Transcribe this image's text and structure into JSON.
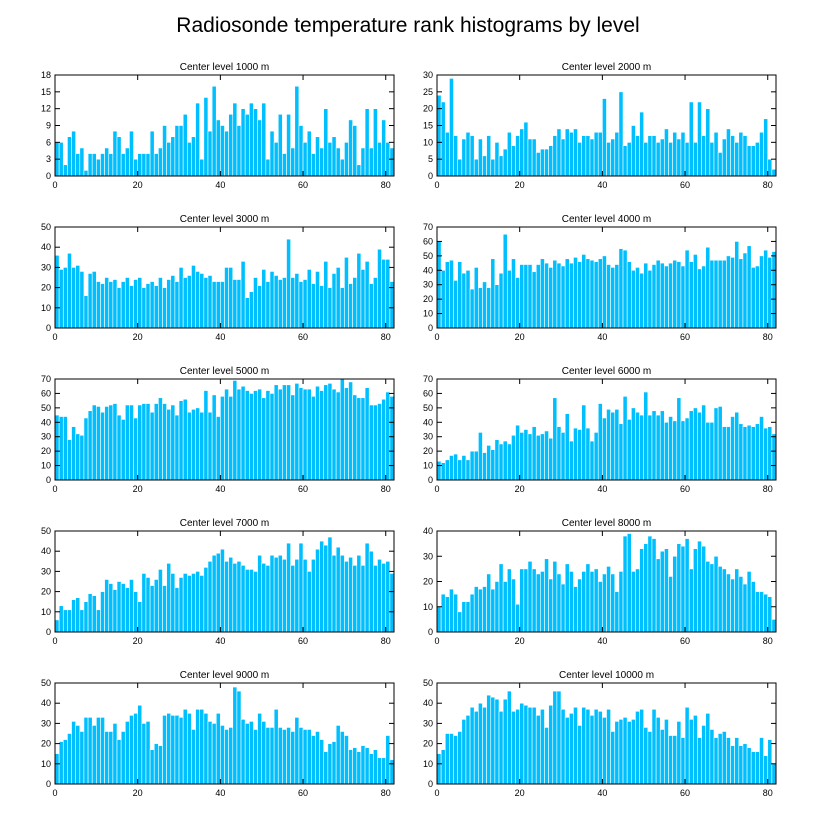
{
  "figure_title": "Radiosonde temperature rank histograms by level",
  "colors": {
    "bar": "#00bfff",
    "bar_edge": "#ffffff",
    "axis": "#000000"
  },
  "chart_data": [
    {
      "type": "bar",
      "title": "Center level 1000 m",
      "x_start": 0,
      "xlim": [
        0,
        82
      ],
      "xticks": [
        0,
        20,
        40,
        60,
        80
      ],
      "ylim": [
        0,
        18
      ],
      "yticks": [
        0,
        3,
        6,
        9,
        12,
        15,
        18
      ],
      "values": [
        6,
        6,
        2,
        7,
        8,
        4,
        5,
        1,
        4,
        4,
        3,
        4,
        5,
        4,
        8,
        7,
        4,
        5,
        8,
        3,
        4,
        4,
        4,
        8,
        4,
        5,
        9,
        6,
        7,
        9,
        9,
        11,
        6,
        7,
        13,
        3,
        14,
        8,
        16,
        10,
        9,
        8,
        11,
        13,
        9,
        12,
        11,
        13,
        12,
        10,
        13,
        3,
        8,
        6,
        11,
        4,
        11,
        5,
        16,
        9,
        6,
        8,
        4,
        7,
        5,
        12,
        6,
        7,
        5,
        3,
        6,
        10,
        9,
        2,
        5,
        12,
        5,
        12,
        6,
        10,
        6,
        5
      ]
    },
    {
      "type": "bar",
      "title": "Center level 2000 m",
      "x_start": 0,
      "xlim": [
        0,
        82
      ],
      "xticks": [
        0,
        20,
        40,
        60,
        80
      ],
      "ylim": [
        0,
        30
      ],
      "yticks": [
        0,
        5,
        10,
        15,
        20,
        25,
        30
      ],
      "values": [
        24,
        22,
        13,
        29,
        12,
        5,
        11,
        13,
        12,
        5,
        11,
        6,
        12,
        5,
        10,
        6,
        8,
        13,
        9,
        12,
        14,
        16,
        11,
        11,
        7,
        8,
        8,
        9,
        12,
        14,
        11,
        14,
        13,
        14,
        10,
        12,
        12,
        11,
        13,
        13,
        23,
        10,
        11,
        13,
        25,
        9,
        10,
        15,
        12,
        19,
        10,
        12,
        12,
        10,
        11,
        14,
        10,
        13,
        11,
        13,
        10,
        22,
        10,
        22,
        12,
        20,
        10,
        13,
        7,
        11,
        14,
        12,
        10,
        13,
        12,
        9,
        9,
        10,
        13,
        17,
        5,
        2
      ]
    },
    {
      "type": "bar",
      "title": "Center level 3000 m",
      "x_start": 0,
      "xlim": [
        0,
        82
      ],
      "xticks": [
        0,
        20,
        40,
        60,
        80
      ],
      "ylim": [
        0,
        50
      ],
      "yticks": [
        0,
        10,
        20,
        30,
        40,
        50
      ],
      "values": [
        36,
        29,
        30,
        37,
        30,
        31,
        28,
        16,
        27,
        28,
        23,
        22,
        25,
        23,
        24,
        20,
        23,
        25,
        21,
        24,
        25,
        20,
        22,
        23,
        21,
        25,
        20,
        24,
        26,
        23,
        30,
        25,
        26,
        31,
        28,
        27,
        25,
        26,
        23,
        23,
        23,
        30,
        30,
        24,
        24,
        33,
        15,
        18,
        25,
        21,
        29,
        23,
        28,
        26,
        24,
        25,
        44,
        25,
        27,
        23,
        24,
        29,
        22,
        28,
        21,
        33,
        20,
        27,
        30,
        20,
        35,
        22,
        25,
        37,
        29,
        33,
        22,
        25,
        39,
        34,
        34,
        23
      ]
    },
    {
      "type": "bar",
      "title": "Center level 4000 m",
      "x_start": 0,
      "xlim": [
        0,
        82
      ],
      "xticks": [
        0,
        20,
        40,
        60,
        80
      ],
      "ylim": [
        0,
        70
      ],
      "yticks": [
        0,
        10,
        20,
        30,
        40,
        50,
        60,
        70
      ],
      "values": [
        60,
        40,
        46,
        47,
        33,
        46,
        38,
        40,
        27,
        42,
        28,
        32,
        28,
        48,
        30,
        38,
        65,
        40,
        48,
        35,
        44,
        44,
        44,
        39,
        44,
        48,
        45,
        42,
        47,
        45,
        43,
        48,
        45,
        49,
        46,
        51,
        48,
        47,
        46,
        48,
        50,
        44,
        42,
        44,
        55,
        54,
        46,
        40,
        42,
        38,
        45,
        40,
        44,
        47,
        45,
        43,
        45,
        47,
        46,
        43,
        54,
        46,
        51,
        41,
        43,
        56,
        47,
        47,
        47,
        47,
        50,
        49,
        60,
        48,
        52,
        57,
        42,
        43,
        50,
        54,
        49,
        53
      ]
    },
    {
      "type": "bar",
      "title": "Center level 5000 m",
      "x_start": 0,
      "xlim": [
        0,
        82
      ],
      "xticks": [
        0,
        20,
        40,
        60,
        80
      ],
      "ylim": [
        0,
        70
      ],
      "yticks": [
        0,
        10,
        20,
        30,
        40,
        50,
        60,
        70
      ],
      "values": [
        45,
        44,
        44,
        28,
        37,
        32,
        31,
        43,
        48,
        52,
        51,
        47,
        51,
        52,
        53,
        45,
        42,
        52,
        52,
        43,
        52,
        53,
        53,
        47,
        53,
        57,
        53,
        49,
        52,
        45,
        55,
        56,
        47,
        49,
        50,
        47,
        62,
        47,
        59,
        44,
        58,
        63,
        58,
        69,
        63,
        65,
        62,
        60,
        62,
        63,
        57,
        62,
        60,
        66,
        63,
        66,
        66,
        59,
        67,
        64,
        63,
        63,
        58,
        65,
        62,
        66,
        67,
        63,
        61,
        70,
        64,
        68,
        59,
        57,
        57,
        64,
        52,
        52,
        53,
        56,
        61,
        58
      ]
    },
    {
      "type": "bar",
      "title": "Center level 6000 m",
      "x_start": 0,
      "xlim": [
        0,
        82
      ],
      "xticks": [
        0,
        20,
        40,
        60,
        80
      ],
      "ylim": [
        0,
        70
      ],
      "yticks": [
        0,
        10,
        20,
        30,
        40,
        50,
        60,
        70
      ],
      "values": [
        13,
        12,
        14,
        17,
        18,
        14,
        17,
        14,
        20,
        20,
        33,
        19,
        24,
        21,
        28,
        25,
        27,
        25,
        31,
        38,
        33,
        35,
        32,
        37,
        31,
        32,
        34,
        29,
        57,
        37,
        33,
        46,
        27,
        36,
        35,
        52,
        36,
        27,
        33,
        53,
        43,
        49,
        47,
        49,
        39,
        58,
        42,
        50,
        47,
        45,
        61,
        45,
        48,
        45,
        48,
        40,
        44,
        41,
        57,
        41,
        43,
        48,
        50,
        47,
        52,
        40,
        40,
        50,
        51,
        37,
        37,
        44,
        47,
        39,
        37,
        38,
        37,
        39,
        44,
        36,
        37,
        32
      ]
    },
    {
      "type": "bar",
      "title": "Center level 7000 m",
      "x_start": 0,
      "xlim": [
        0,
        82
      ],
      "xticks": [
        0,
        20,
        40,
        60,
        80
      ],
      "ylim": [
        0,
        50
      ],
      "yticks": [
        0,
        10,
        20,
        30,
        40,
        50
      ],
      "values": [
        6,
        13,
        11,
        11,
        16,
        17,
        11,
        15,
        19,
        18,
        11,
        20,
        26,
        24,
        21,
        25,
        24,
        22,
        26,
        20,
        15,
        29,
        27,
        23,
        26,
        31,
        23,
        34,
        29,
        22,
        27,
        29,
        28,
        29,
        30,
        28,
        32,
        35,
        38,
        39,
        41,
        35,
        37,
        34,
        35,
        33,
        31,
        31,
        30,
        38,
        34,
        33,
        38,
        37,
        38,
        36,
        44,
        33,
        36,
        44,
        36,
        30,
        36,
        41,
        45,
        43,
        47,
        38,
        42,
        38,
        35,
        37,
        33,
        38,
        33,
        44,
        40,
        33,
        36,
        34,
        35,
        29
      ]
    },
    {
      "type": "bar",
      "title": "Center level 8000 m",
      "x_start": 0,
      "xlim": [
        0,
        82
      ],
      "xticks": [
        0,
        20,
        40,
        60,
        80
      ],
      "ylim": [
        0,
        40
      ],
      "yticks": [
        0,
        10,
        20,
        30,
        40
      ],
      "values": [
        10,
        15,
        14,
        17,
        15,
        8,
        12,
        12,
        15,
        18,
        17,
        18,
        23,
        17,
        20,
        27,
        20,
        25,
        21,
        11,
        25,
        25,
        28,
        25,
        23,
        24,
        29,
        21,
        28,
        23,
        19,
        27,
        24,
        18,
        21,
        24,
        27,
        24,
        25,
        20,
        23,
        26,
        23,
        16,
        24,
        38,
        39,
        24,
        25,
        33,
        35,
        38,
        37,
        29,
        32,
        33,
        22,
        30,
        35,
        34,
        37,
        25,
        33,
        36,
        34,
        28,
        27,
        30,
        26,
        25,
        23,
        21,
        25,
        22,
        19,
        24,
        20,
        16,
        16,
        15,
        14,
        5
      ]
    },
    {
      "type": "bar",
      "title": "Center level 9000 m",
      "x_start": 0,
      "xlim": [
        0,
        82
      ],
      "xticks": [
        0,
        20,
        40,
        60,
        80
      ],
      "ylim": [
        0,
        50
      ],
      "yticks": [
        0,
        10,
        20,
        30,
        40,
        50
      ],
      "values": [
        15,
        21,
        22,
        25,
        31,
        29,
        26,
        33,
        33,
        29,
        33,
        33,
        26,
        26,
        30,
        22,
        26,
        31,
        34,
        35,
        39,
        30,
        31,
        17,
        20,
        19,
        34,
        35,
        34,
        34,
        33,
        37,
        35,
        27,
        37,
        37,
        35,
        31,
        30,
        35,
        29,
        27,
        28,
        48,
        46,
        32,
        30,
        31,
        27,
        35,
        31,
        28,
        28,
        37,
        28,
        27,
        28,
        26,
        33,
        28,
        27,
        27,
        24,
        26,
        22,
        16,
        20,
        21,
        29,
        26,
        24,
        17,
        18,
        16,
        19,
        18,
        15,
        17,
        13,
        13,
        24,
        12
      ]
    },
    {
      "type": "bar",
      "title": "Center level 10000 m",
      "x_start": 0,
      "xlim": [
        0,
        82
      ],
      "xticks": [
        0,
        20,
        40,
        60,
        80
      ],
      "ylim": [
        0,
        50
      ],
      "yticks": [
        0,
        10,
        20,
        30,
        40,
        50
      ],
      "values": [
        15,
        17,
        25,
        25,
        24,
        26,
        32,
        34,
        38,
        36,
        40,
        38,
        44,
        43,
        42,
        36,
        42,
        46,
        36,
        37,
        40,
        39,
        38,
        38,
        34,
        37,
        28,
        39,
        46,
        46,
        37,
        33,
        35,
        38,
        29,
        38,
        37,
        34,
        37,
        36,
        33,
        37,
        26,
        31,
        32,
        33,
        31,
        32,
        36,
        37,
        28,
        26,
        37,
        33,
        27,
        32,
        24,
        24,
        31,
        23,
        38,
        32,
        34,
        23,
        29,
        35,
        27,
        23,
        25,
        26,
        23,
        19,
        23,
        19,
        20,
        18,
        16,
        16,
        23,
        14,
        22,
        10
      ]
    }
  ]
}
